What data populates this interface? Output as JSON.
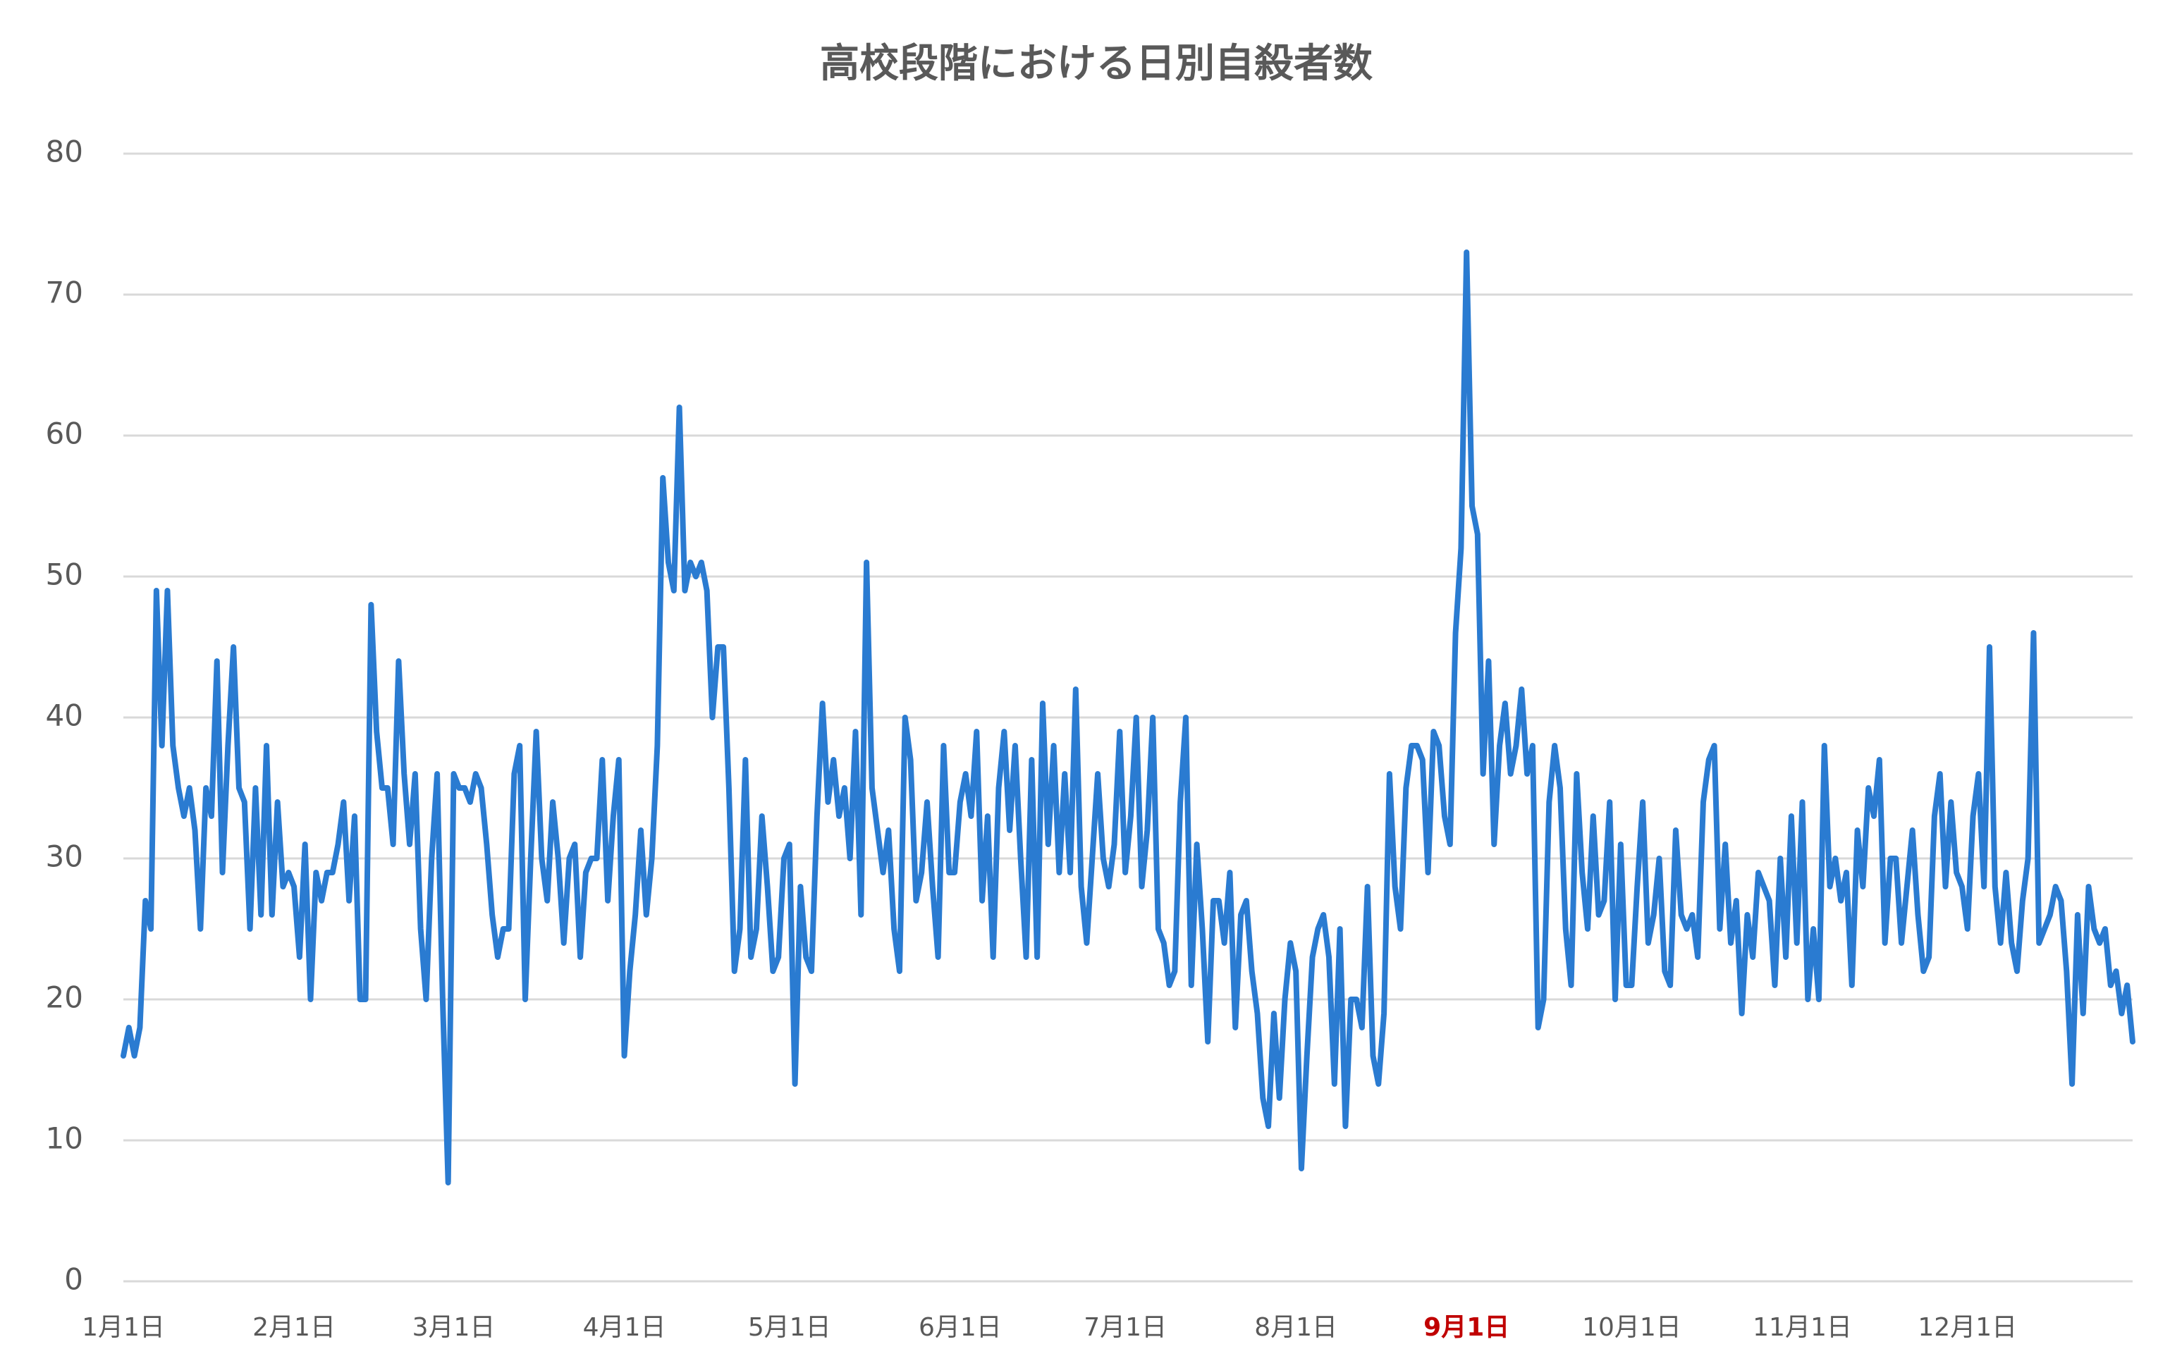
{
  "chart_data": {
    "type": "line",
    "title": "高校段階における日別自殺者数",
    "categories": [
      "1月1日",
      null,
      null,
      null,
      null,
      null,
      null,
      null,
      null,
      null,
      null,
      null,
      null,
      null,
      null,
      null,
      null,
      null,
      null,
      null,
      null,
      null,
      null,
      null,
      null,
      null,
      null,
      null,
      null,
      null,
      null,
      "2月1日",
      null,
      null,
      null,
      null,
      null,
      null,
      null,
      null,
      null,
      null,
      null,
      null,
      null,
      null,
      null,
      null,
      null,
      null,
      null,
      null,
      null,
      null,
      null,
      null,
      null,
      null,
      null,
      null,
      "3月1日",
      null,
      null,
      null,
      null,
      null,
      null,
      null,
      null,
      null,
      null,
      null,
      null,
      null,
      null,
      null,
      null,
      null,
      null,
      null,
      null,
      null,
      null,
      null,
      null,
      null,
      null,
      null,
      null,
      null,
      null,
      "4月1日",
      null,
      null,
      null,
      null,
      null,
      null,
      null,
      null,
      null,
      null,
      null,
      null,
      null,
      null,
      null,
      null,
      null,
      null,
      null,
      null,
      null,
      null,
      null,
      null,
      null,
      null,
      null,
      null,
      null,
      "5月1日",
      null,
      null,
      null,
      null,
      null,
      null,
      null,
      null,
      null,
      null,
      null,
      null,
      null,
      null,
      null,
      null,
      null,
      null,
      null,
      null,
      null,
      null,
      null,
      null,
      null,
      null,
      null,
      null,
      null,
      null,
      "6月1日",
      null,
      null,
      null,
      null,
      null,
      null,
      null,
      null,
      null,
      null,
      null,
      null,
      null,
      null,
      null,
      null,
      null,
      null,
      null,
      null,
      null,
      null,
      null,
      null,
      null,
      null,
      null,
      null,
      null,
      "7月1日",
      null,
      null,
      null,
      null,
      null,
      null,
      null,
      null,
      null,
      null,
      null,
      null,
      null,
      null,
      null,
      null,
      null,
      null,
      null,
      null,
      null,
      null,
      null,
      null,
      null,
      null,
      null,
      null,
      null,
      null,
      "8月1日",
      null,
      null,
      null,
      null,
      null,
      null,
      null,
      null,
      null,
      null,
      null,
      null,
      null,
      null,
      null,
      null,
      null,
      null,
      null,
      null,
      null,
      null,
      null,
      null,
      null,
      null,
      null,
      null,
      null,
      null,
      "9月1日",
      null,
      null,
      null,
      null,
      null,
      null,
      null,
      null,
      null,
      null,
      null,
      null,
      null,
      null,
      null,
      null,
      null,
      null,
      null,
      null,
      null,
      null,
      null,
      null,
      null,
      null,
      null,
      null,
      null,
      "10月1日",
      null,
      null,
      null,
      null,
      null,
      null,
      null,
      null,
      null,
      null,
      null,
      null,
      null,
      null,
      null,
      null,
      null,
      null,
      null,
      null,
      null,
      null,
      null,
      null,
      null,
      null,
      null,
      null,
      null,
      null,
      "11月1日",
      null,
      null,
      null,
      null,
      null,
      null,
      null,
      null,
      null,
      null,
      null,
      null,
      null,
      null,
      null,
      null,
      null,
      null,
      null,
      null,
      null,
      null,
      null,
      null,
      null,
      null,
      null,
      null,
      null,
      "12月1日",
      null,
      null,
      null,
      null,
      null,
      null,
      null,
      null,
      null,
      null,
      null,
      null,
      null,
      null,
      null,
      null,
      null,
      null,
      null,
      null,
      null,
      null,
      null,
      null,
      null,
      null,
      null,
      null,
      null,
      null
    ],
    "values": [
      16,
      18,
      16,
      18,
      27,
      25,
      49,
      38,
      49,
      38,
      35,
      33,
      35,
      32,
      25,
      35,
      33,
      44,
      29,
      38,
      45,
      35,
      34,
      25,
      35,
      26,
      38,
      26,
      34,
      28,
      29,
      28,
      23,
      31,
      20,
      29,
      27,
      29,
      29,
      31,
      34,
      27,
      33,
      20,
      20,
      48,
      39,
      35,
      35,
      31,
      44,
      36,
      31,
      36,
      25,
      20,
      30,
      36,
      20,
      7,
      36,
      35,
      35,
      34,
      36,
      35,
      31,
      26,
      23,
      25,
      25,
      36,
      38,
      20,
      30,
      39,
      30,
      27,
      34,
      30,
      24,
      30,
      31,
      23,
      29,
      30,
      30,
      37,
      27,
      33,
      37,
      16,
      22,
      26,
      32,
      26,
      30,
      38,
      57,
      51,
      49,
      62,
      49,
      51,
      50,
      51,
      49,
      40,
      45,
      45,
      35,
      22,
      25,
      37,
      23,
      25,
      33,
      28,
      22,
      23,
      30,
      31,
      14,
      28,
      23,
      22,
      33,
      41,
      34,
      37,
      33,
      35,
      30,
      39,
      26,
      51,
      35,
      32,
      29,
      32,
      25,
      22,
      40,
      37,
      27,
      29,
      34,
      28,
      23,
      38,
      29,
      29,
      34,
      36,
      33,
      39,
      27,
      33,
      23,
      35,
      39,
      32,
      38,
      30,
      23,
      37,
      23,
      41,
      31,
      38,
      29,
      36,
      29,
      42,
      28,
      24,
      30,
      36,
      30,
      28,
      31,
      39,
      29,
      33,
      40,
      28,
      32,
      40,
      25,
      24,
      21,
      22,
      34,
      40,
      21,
      31,
      25,
      17,
      27,
      27,
      24,
      29,
      18,
      26,
      27,
      22,
      19,
      13,
      11,
      19,
      13,
      20,
      24,
      22,
      8,
      16,
      23,
      25,
      26,
      23,
      14,
      25,
      11,
      20,
      20,
      18,
      28,
      16,
      14,
      19,
      36,
      28,
      25,
      35,
      38,
      38,
      37,
      29,
      39,
      38,
      33,
      31,
      46,
      52,
      73,
      55,
      53,
      36,
      44,
      31,
      38,
      41,
      36,
      38,
      42,
      36,
      38,
      18,
      20,
      34,
      38,
      35,
      25,
      21,
      36,
      29,
      25,
      33,
      26,
      27,
      34,
      20,
      31,
      21,
      21,
      28,
      34,
      24,
      26,
      30,
      22,
      21,
      32,
      26,
      25,
      26,
      23,
      34,
      37,
      38,
      25,
      31,
      24,
      27,
      19,
      26,
      23,
      29,
      28,
      27,
      21,
      30,
      23,
      33,
      24,
      34,
      20,
      25,
      20,
      38,
      28,
      30,
      27,
      29,
      21,
      32,
      28,
      35,
      33,
      37,
      24,
      30,
      30,
      24,
      28,
      32,
      26,
      22,
      23,
      33,
      36,
      28,
      34,
      29,
      28,
      25,
      33,
      36,
      28,
      45,
      28,
      24,
      29,
      24,
      22,
      27,
      30,
      46,
      24,
      25,
      26,
      28,
      27,
      22,
      14,
      26,
      19,
      28,
      25,
      24,
      25,
      21,
      22,
      19,
      21,
      17
    ],
    "color": "#2a7bd1",
    "ylim": [
      0,
      80
    ],
    "yticks": [
      0,
      10,
      20,
      30,
      40,
      50,
      60,
      70,
      80
    ],
    "grid": true,
    "highlighted_category_index": 244,
    "highlight_color": "#c00000"
  }
}
